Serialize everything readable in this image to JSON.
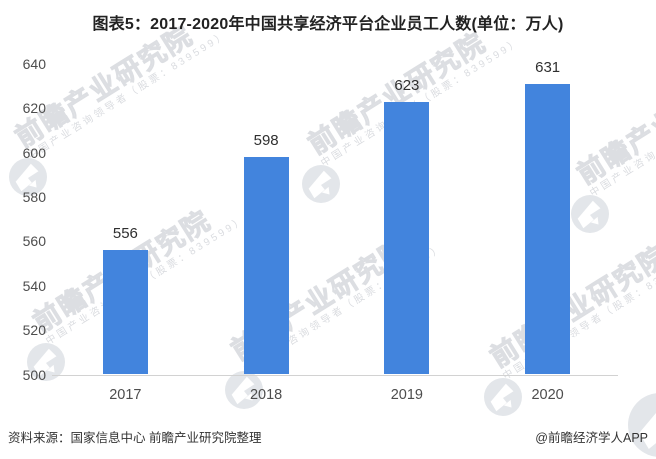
{
  "title": "图表5：2017-2020年中国共享经济平台企业员工人数(单位：万人)",
  "chart_data": {
    "type": "bar",
    "title": "图表5：2017-2020年中国共享经济平台企业员工人数(单位：万人)",
    "categories": [
      "2017",
      "2018",
      "2019",
      "2020"
    ],
    "values": [
      556,
      598,
      623,
      631
    ],
    "unit": "万人",
    "xlabel": "",
    "ylabel": "",
    "ylim": [
      500,
      640
    ],
    "yticks": [
      500,
      520,
      540,
      560,
      580,
      600,
      620,
      640
    ],
    "grid": false,
    "legend_position": "none",
    "bar_color": "#4284dd"
  },
  "footer": {
    "source": "资料来源：国家信息中心 前瞻产业研究院整理",
    "credit": "@前瞻经济学人APP"
  },
  "watermark": {
    "brand": "前瞻产业研究院",
    "tagline": "中国产业咨询领导者（股票：839599）",
    "logo_circle_color": "#e3e6ea"
  },
  "colors": {
    "title": "#222222",
    "bar": "#4284dd",
    "axis_labels": "#4d4d4d",
    "value_labels": "#2f2f2f",
    "baseline": "#d2d2d2",
    "footer_text": "#333333"
  }
}
